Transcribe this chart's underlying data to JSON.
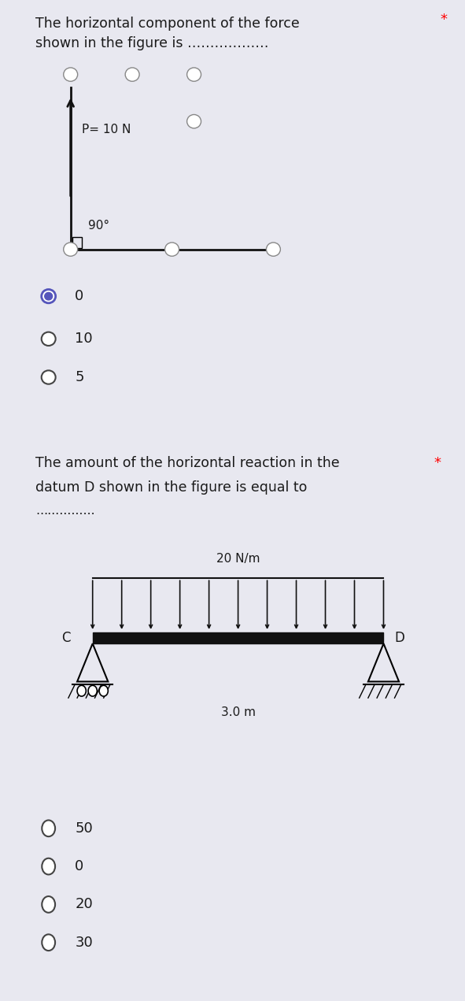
{
  "bg_color": "#e8e8f0",
  "card1_bg": "#ffffff",
  "card2_bg": "#ffffff",
  "q1_text_line1": "The horizontal component of the force",
  "q1_text_line2": "shown in the figure is ………………",
  "q1_star": "*",
  "q1_options": [
    "0",
    "10",
    "5"
  ],
  "q1_selected": 0,
  "q2_text_line1": "The amount of the horizontal reaction in the",
  "q2_star_inline": true,
  "q2_text_line2": "datum D shown in the figure is equal to",
  "q2_text_line3": "……………",
  "q2_options": [
    "50",
    "0",
    "20",
    "30"
  ],
  "q2_selected": -1,
  "force_label": "P= 10 N",
  "angle_label": "90°",
  "dist_label": "20 N/m",
  "length_label": "3.0 m",
  "left_support": "C",
  "right_support": "D",
  "text_color": "#1a1a1a",
  "option_color": "#1a1a1a",
  "radio_selected_color": "#5555bb",
  "radio_stroke": "#444444",
  "beam_color": "#111111",
  "load_color": "#111111",
  "node_color": "#888888"
}
